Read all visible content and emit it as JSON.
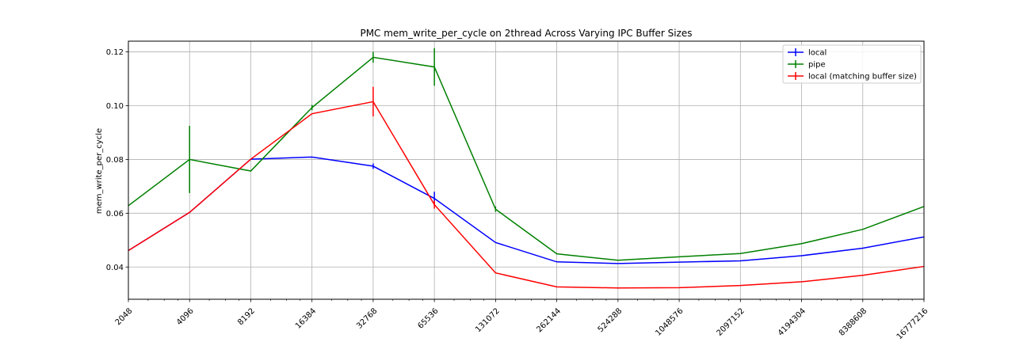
{
  "chart_data": {
    "type": "line",
    "title": "PMC mem_write_per_cycle on 2thread Across Varying IPC Buffer Sizes",
    "xlabel": "",
    "ylabel": "mem_write_per_cycle",
    "x_scale": "log2",
    "x": [
      2048,
      4096,
      8192,
      16384,
      32768,
      65536,
      131072,
      262144,
      524288,
      1048576,
      2097152,
      4194304,
      8388608,
      16777216
    ],
    "xticklabels": [
      "2048",
      "4096",
      "8192",
      "16384",
      "32768",
      "65536",
      "131072",
      "262144",
      "524288",
      "1048576",
      "2097152",
      "4194304",
      "8388608",
      "16777216"
    ],
    "ylim": [
      0.028,
      0.124
    ],
    "yticks": [
      0.04,
      0.06,
      0.08,
      0.1,
      0.12
    ],
    "yticklabels": [
      "0.04",
      "0.06",
      "0.08",
      "0.10",
      "0.12"
    ],
    "grid": true,
    "legend_position": "top-right",
    "series": [
      {
        "name": "local",
        "color": "#0000ff",
        "values": [
          0.0461,
          0.0603,
          0.0801,
          0.0809,
          0.0775,
          0.0655,
          0.0491,
          0.0419,
          0.0413,
          0.0418,
          0.0423,
          0.0442,
          0.047,
          0.0512
        ],
        "errors": [
          0,
          0,
          0,
          0,
          0.001,
          0.0025,
          0,
          0,
          0,
          0,
          0,
          0,
          0,
          0
        ]
      },
      {
        "name": "pipe",
        "color": "#008000",
        "values": [
          0.0628,
          0.08,
          0.0757,
          0.0993,
          0.118,
          0.1144,
          0.0615,
          0.0449,
          0.0425,
          0.0438,
          0.045,
          0.0487,
          0.054,
          0.0625
        ],
        "errors": [
          0,
          0.0125,
          0,
          0.001,
          0.002,
          0.007,
          0.001,
          0,
          0,
          0,
          0,
          0,
          0,
          0
        ]
      },
      {
        "name": "local (matching buffer size)",
        "color": "#ff0000",
        "values": [
          0.0461,
          0.0603,
          0.0801,
          0.097,
          0.1015,
          0.0632,
          0.0378,
          0.0326,
          0.0322,
          0.0323,
          0.0331,
          0.0345,
          0.0369,
          0.0402
        ],
        "errors": [
          0,
          0,
          0,
          0,
          0.0055,
          0.0015,
          0,
          0,
          0,
          0,
          0,
          0,
          0,
          0
        ]
      }
    ]
  }
}
